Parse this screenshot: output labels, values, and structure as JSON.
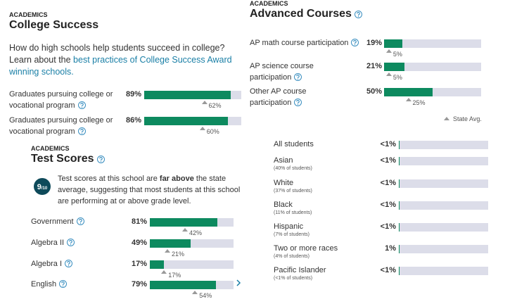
{
  "college_success": {
    "eyebrow": "ACADEMICS",
    "title": "College Success",
    "intro": "How do high schools help students succeed in college? Learn about the ",
    "link": "best practices of College Success Award winning schools.",
    "rows": [
      {
        "label": "Graduates pursuing college or vocational program",
        "value": 89,
        "value_label": "89%",
        "state_avg": 62,
        "state_avg_label": "62%"
      },
      {
        "label": "Graduates pursuing college or vocational program",
        "value": 86,
        "value_label": "86%",
        "state_avg": 60,
        "state_avg_label": "60%"
      }
    ]
  },
  "test_scores": {
    "eyebrow": "ACADEMICS",
    "title": "Test Scores",
    "rating": 9,
    "rating_scale": "/10",
    "summary_before": "Test scores at this school are ",
    "summary_bold": "far above",
    "summary_after": " the state average, suggesting that most students at this school are performing at or above grade level.",
    "rows": [
      {
        "label": "Government",
        "value": 81,
        "value_label": "81%",
        "state_avg": 42,
        "state_avg_label": "42%"
      },
      {
        "label": "Algebra II",
        "value": 49,
        "value_label": "49%",
        "state_avg": 21,
        "state_avg_label": "21%"
      },
      {
        "label": "Algebra I",
        "value": 17,
        "value_label": "17%",
        "state_avg": 17,
        "state_avg_label": "17%"
      },
      {
        "label": "English",
        "value": 79,
        "value_label": "79%",
        "state_avg": 54,
        "state_avg_label": "54%"
      }
    ]
  },
  "advanced_courses": {
    "eyebrow": "ACADEMICS",
    "title": "Advanced Courses",
    "rows": [
      {
        "label": "AP math course participation",
        "value": 19,
        "value_label": "19%",
        "state_avg": 5,
        "state_avg_label": "5%"
      },
      {
        "label": "AP science course participation",
        "value": 21,
        "value_label": "21%",
        "state_avg": 5,
        "state_avg_label": "5%"
      },
      {
        "label": "Other AP course participation",
        "value": 50,
        "value_label": "50%",
        "state_avg": 25,
        "state_avg_label": "25%"
      }
    ],
    "legend": "State Avg."
  },
  "student_groups": {
    "rows": [
      {
        "label": "All students",
        "value": 0.5,
        "value_label": "<1%"
      },
      {
        "label": "Asian",
        "share": "(40% of students)",
        "value": 0.5,
        "value_label": "<1%"
      },
      {
        "label": "White",
        "share": "(37% of students)",
        "value": 0.5,
        "value_label": "<1%"
      },
      {
        "label": "Black",
        "share": "(11% of students)",
        "value": 0.5,
        "value_label": "<1%"
      },
      {
        "label": "Hispanic",
        "share": "(7% of students)",
        "value": 0.5,
        "value_label": "<1%"
      },
      {
        "label": "Two or more races",
        "share": "(4% of students)",
        "value": 1,
        "value_label": "1%"
      },
      {
        "label": "Pacific Islander",
        "share": "(<1% of students)",
        "value": 0.5,
        "value_label": "<1%"
      }
    ]
  }
}
